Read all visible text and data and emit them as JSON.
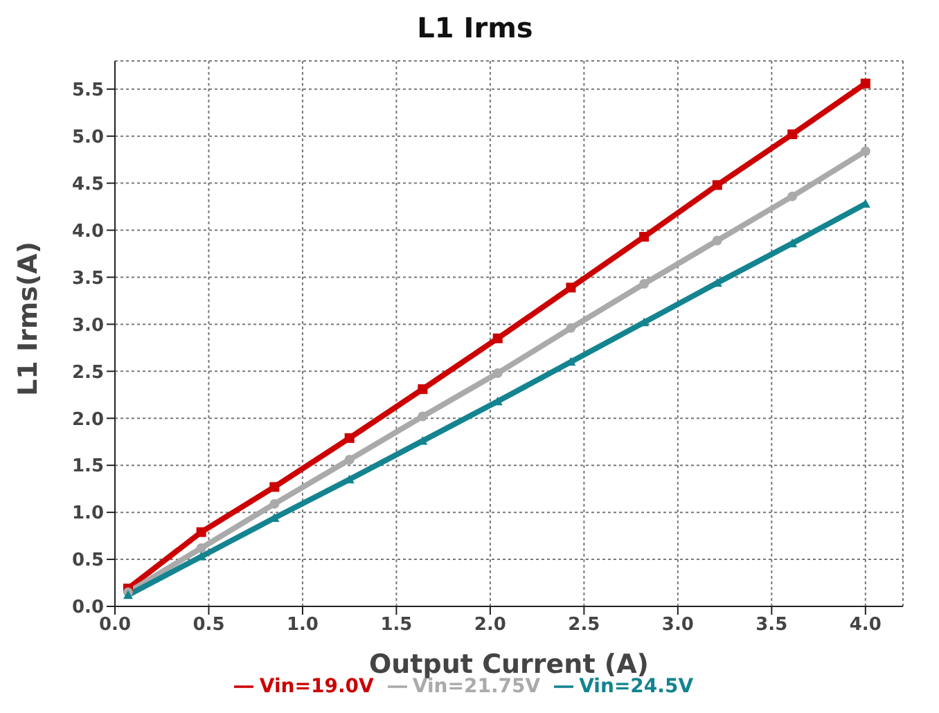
{
  "chart_data": {
    "type": "line",
    "title": "L1 Irms",
    "xlabel": "Output Current (A)",
    "ylabel": "L1 Irms(A)",
    "x": [
      0.07,
      0.46,
      0.85,
      1.25,
      1.64,
      2.04,
      2.43,
      2.82,
      3.21,
      3.61,
      4.0
    ],
    "series": [
      {
        "name": "Vin=19.0V",
        "color": "#cc0000",
        "marker": "square",
        "values": [
          0.19,
          0.79,
          1.27,
          1.79,
          2.31,
          2.85,
          3.39,
          3.93,
          4.48,
          5.02,
          5.56
        ]
      },
      {
        "name": "Vin=21.75V",
        "color": "#aaaaaa",
        "marker": "circle",
        "values": [
          0.15,
          0.62,
          1.09,
          1.56,
          2.02,
          2.48,
          2.96,
          3.43,
          3.89,
          4.36,
          4.84
        ]
      },
      {
        "name": "Vin=24.5V",
        "color": "#138490",
        "marker": "triangle",
        "values": [
          0.12,
          0.53,
          0.94,
          1.35,
          1.76,
          2.18,
          2.6,
          3.02,
          3.44,
          3.86,
          4.28
        ]
      }
    ],
    "xlim": [
      0,
      4.2
    ],
    "xticks": [
      {
        "value": 0,
        "label": "0.0"
      },
      0.5,
      {
        "value": 1,
        "label": "1.0"
      },
      1.5,
      {
        "value": 2,
        "label": "2.0"
      },
      2.5,
      {
        "value": 3,
        "label": "3.0"
      },
      3.5,
      {
        "value": 4,
        "label": "4.0"
      }
    ],
    "ylim": [
      0,
      5.8
    ],
    "yticks": [
      {
        "value": 0,
        "label": "0.0"
      },
      0.5,
      {
        "value": 1,
        "label": "1.0"
      },
      1.5,
      {
        "value": 2,
        "label": "2.0"
      },
      2.5,
      {
        "value": 3,
        "label": "3.0"
      },
      3.5,
      {
        "value": 4,
        "label": "4.0"
      },
      4.5,
      {
        "value": 5,
        "label": "5.0"
      },
      5.5
    ],
    "grid": true,
    "legend": "bottom",
    "line_style": "solid"
  }
}
